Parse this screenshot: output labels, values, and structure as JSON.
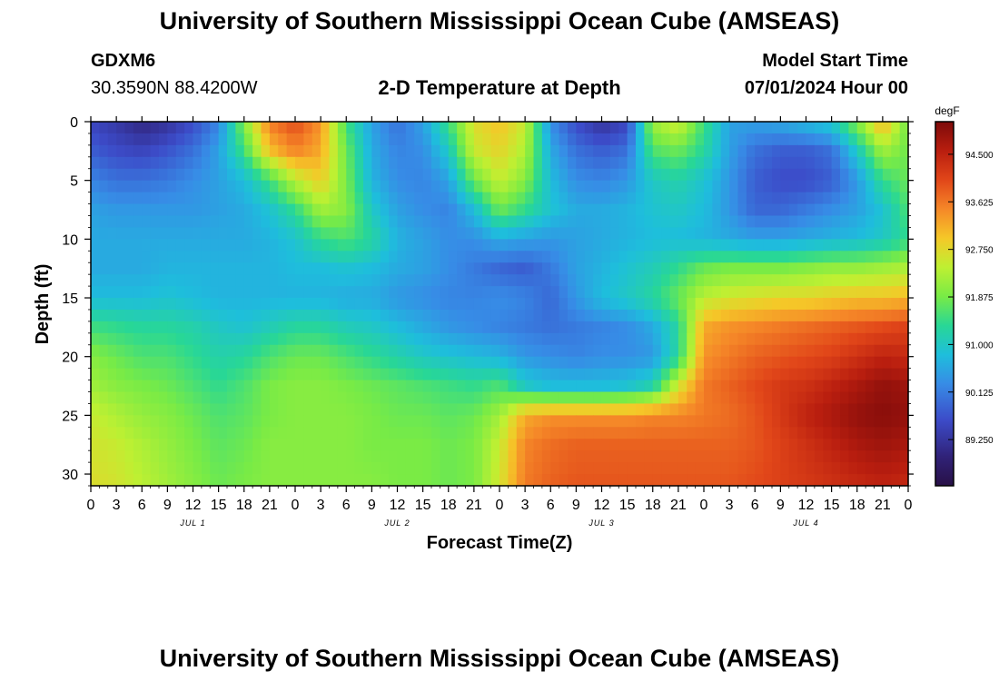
{
  "header": {
    "title": "University of Southern Mississippi Ocean Cube (AMSEAS)",
    "station": "GDXM6",
    "coords": "30.3590N  88.4200W",
    "plot_title": "2-D Temperature at Depth",
    "model_start_label": "Model Start Time",
    "model_start_value": "07/01/2024 Hour 00"
  },
  "footer": {
    "title": "University of Southern Mississippi Ocean Cube (AMSEAS)"
  },
  "chart_data": {
    "type": "heatmap",
    "title": "2-D Temperature at Depth",
    "xlabel": "Forecast Time(Z)",
    "ylabel": "Depth (ft)",
    "xlim": [
      0,
      96
    ],
    "ylim": [
      31,
      0
    ],
    "x_ticks": [
      0,
      3,
      6,
      9,
      12,
      15,
      18,
      21,
      24,
      27,
      30,
      33,
      36,
      39,
      42,
      45,
      48,
      51,
      54,
      57,
      60,
      63,
      66,
      69,
      72,
      75,
      78,
      81,
      84,
      87,
      90,
      93,
      96
    ],
    "x_tick_labels": [
      "0",
      "3",
      "6",
      "9",
      "12",
      "15",
      "18",
      "21",
      "0",
      "3",
      "6",
      "9",
      "12",
      "15",
      "18",
      "21",
      "0",
      "3",
      "6",
      "9",
      "12",
      "15",
      "18",
      "21",
      "0",
      "3",
      "6",
      "9",
      "12",
      "15",
      "18",
      "21",
      "0"
    ],
    "y_ticks": [
      0,
      5,
      10,
      15,
      20,
      25,
      30
    ],
    "y_tick_labels": [
      "0",
      "5",
      "10",
      "15",
      "20",
      "25",
      "30"
    ],
    "day_labels": [
      {
        "text": "JUL 1",
        "x": 12
      },
      {
        "text": "JUL 2",
        "x": 36
      },
      {
        "text": "JUL 3",
        "x": 60
      },
      {
        "text": "JUL 4",
        "x": 84
      }
    ],
    "colorbar": {
      "unit": "degF",
      "min": 88.4,
      "max": 95.1,
      "tick_values": [
        94.5,
        93.625,
        92.75,
        91.875,
        91.0,
        90.125,
        89.25
      ],
      "tick_labels": [
        "94.500",
        "93.625",
        "92.750",
        "91.875",
        "91.000",
        "90.125",
        "89.250"
      ]
    },
    "depths_ft": [
      0,
      2.5,
      5,
      7.5,
      10,
      12.5,
      15,
      17.5,
      20,
      22.5,
      25,
      27.5,
      31
    ],
    "times_hr": [
      0,
      3,
      6,
      9,
      12,
      15,
      18,
      21,
      24,
      27,
      30,
      33,
      36,
      39,
      42,
      45,
      48,
      51,
      54,
      57,
      60,
      63,
      66,
      69,
      72,
      75,
      78,
      81,
      84,
      87,
      90,
      93,
      96
    ],
    "temperature_degF": [
      [
        89.5,
        89.3,
        89.0,
        89.2,
        89.6,
        90.2,
        92.0,
        93.6,
        94.0,
        93.4,
        91.5,
        90.5,
        90.0,
        90.5,
        91.5,
        92.7,
        93.0,
        92.5,
        90.3,
        89.6,
        89.2,
        89.5,
        92.2,
        92.6,
        91.5,
        90.5,
        90.5,
        90.6,
        90.8,
        91.0,
        92.0,
        93.2,
        91.8
      ],
      [
        89.8,
        89.6,
        89.5,
        89.7,
        90.0,
        90.5,
        91.5,
        93.0,
        93.5,
        93.2,
        91.8,
        90.6,
        90.2,
        90.3,
        91.0,
        92.5,
        92.8,
        92.3,
        90.6,
        90.0,
        89.8,
        90.0,
        91.6,
        91.8,
        91.3,
        90.5,
        90.0,
        89.8,
        89.8,
        90.0,
        91.0,
        92.2,
        91.8
      ],
      [
        90.2,
        90.0,
        90.0,
        90.1,
        90.3,
        90.5,
        90.8,
        91.5,
        92.4,
        92.9,
        91.9,
        90.7,
        90.3,
        90.2,
        90.5,
        91.8,
        92.5,
        92.0,
        90.8,
        90.3,
        90.2,
        90.4,
        91.0,
        91.2,
        90.9,
        90.4,
        89.8,
        89.6,
        89.6,
        89.8,
        90.4,
        91.4,
        91.8
      ],
      [
        90.5,
        90.4,
        90.4,
        90.4,
        90.4,
        90.5,
        90.6,
        90.9,
        91.4,
        92.2,
        92.0,
        91.0,
        90.5,
        90.3,
        90.2,
        90.8,
        91.8,
        91.4,
        90.9,
        90.6,
        90.6,
        90.7,
        90.9,
        91.0,
        90.8,
        90.4,
        89.9,
        89.9,
        90.1,
        90.3,
        90.5,
        90.9,
        91.6
      ],
      [
        90.6,
        90.6,
        90.6,
        90.6,
        90.6,
        90.6,
        90.6,
        90.7,
        90.9,
        91.4,
        91.6,
        91.3,
        90.7,
        90.5,
        90.3,
        90.3,
        90.6,
        90.5,
        90.4,
        90.5,
        90.6,
        90.7,
        90.8,
        90.8,
        90.7,
        90.6,
        90.5,
        90.5,
        90.6,
        90.7,
        90.8,
        91.0,
        91.4
      ],
      [
        90.6,
        90.6,
        90.6,
        90.7,
        90.7,
        90.7,
        90.7,
        90.7,
        90.8,
        90.8,
        90.9,
        90.8,
        90.6,
        90.5,
        90.3,
        90.1,
        89.9,
        89.8,
        90.1,
        90.5,
        90.7,
        90.9,
        91.1,
        91.4,
        91.8,
        91.9,
        91.9,
        91.9,
        92.0,
        92.1,
        92.1,
        92.2,
        92.3
      ],
      [
        90.8,
        90.8,
        90.8,
        90.9,
        90.8,
        90.7,
        90.7,
        90.7,
        90.7,
        90.7,
        90.6,
        90.6,
        90.4,
        90.3,
        90.2,
        90.2,
        90.3,
        90.2,
        89.9,
        90.4,
        90.8,
        91.0,
        91.3,
        91.8,
        92.4,
        92.6,
        92.7,
        92.8,
        92.8,
        92.9,
        93.0,
        93.0,
        93.1
      ],
      [
        91.5,
        91.4,
        91.3,
        91.3,
        91.2,
        91.0,
        90.9,
        91.1,
        91.3,
        91.3,
        91.1,
        91.0,
        90.8,
        90.6,
        90.4,
        90.3,
        90.2,
        90.1,
        90.0,
        90.1,
        90.2,
        90.3,
        90.6,
        91.3,
        93.2,
        93.4,
        93.5,
        93.6,
        93.7,
        93.8,
        93.9,
        94.0,
        94.1
      ],
      [
        92.0,
        91.8,
        91.6,
        91.6,
        91.4,
        91.2,
        91.3,
        91.6,
        91.8,
        91.8,
        91.6,
        91.4,
        91.2,
        91.0,
        90.9,
        90.8,
        90.7,
        90.4,
        90.3,
        90.2,
        90.3,
        90.3,
        90.4,
        91.3,
        93.4,
        93.6,
        93.8,
        93.9,
        94.0,
        94.1,
        94.3,
        94.5,
        94.4
      ],
      [
        92.2,
        92.0,
        91.9,
        91.8,
        91.6,
        91.4,
        91.6,
        91.9,
        92.0,
        92.0,
        91.9,
        91.8,
        91.7,
        91.6,
        91.5,
        91.4,
        91.6,
        91.0,
        90.8,
        90.8,
        90.8,
        90.9,
        91.2,
        92.6,
        93.6,
        93.8,
        94.0,
        94.2,
        94.3,
        94.5,
        94.7,
        94.9,
        94.8
      ],
      [
        92.5,
        92.3,
        92.1,
        92.0,
        91.8,
        91.6,
        91.7,
        91.9,
        92.0,
        92.0,
        92.0,
        91.9,
        91.8,
        91.8,
        91.7,
        91.8,
        92.2,
        93.2,
        93.4,
        93.4,
        93.4,
        93.4,
        93.5,
        93.5,
        93.6,
        93.7,
        93.9,
        94.2,
        94.5,
        94.7,
        94.9,
        95.0,
        94.9
      ],
      [
        92.6,
        92.5,
        92.3,
        92.1,
        91.9,
        91.7,
        91.8,
        92.0,
        92.0,
        92.0,
        92.0,
        91.9,
        91.9,
        91.9,
        91.8,
        91.9,
        92.5,
        93.5,
        93.7,
        93.8,
        93.8,
        93.8,
        93.8,
        93.8,
        93.8,
        93.8,
        93.9,
        94.1,
        94.3,
        94.5,
        94.7,
        94.8,
        94.7
      ],
      [
        92.7,
        92.6,
        92.4,
        92.2,
        92.0,
        91.8,
        91.9,
        92.0,
        92.0,
        92.0,
        92.0,
        92.0,
        91.9,
        91.9,
        91.8,
        91.9,
        92.6,
        93.6,
        93.8,
        93.9,
        93.9,
        93.9,
        93.9,
        93.9,
        93.9,
        93.9,
        94.0,
        94.1,
        94.2,
        94.3,
        94.4,
        94.5,
        94.4
      ]
    ]
  }
}
